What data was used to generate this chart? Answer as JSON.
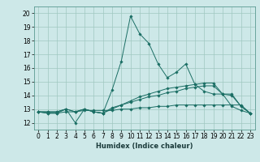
{
  "xlabel": "Humidex (Indice chaleur)",
  "xlim": [
    -0.5,
    23.5
  ],
  "ylim": [
    11.5,
    20.5
  ],
  "xticks": [
    0,
    1,
    2,
    3,
    4,
    5,
    6,
    7,
    8,
    9,
    10,
    11,
    12,
    13,
    14,
    15,
    16,
    17,
    18,
    19,
    20,
    21,
    22,
    23
  ],
  "yticks": [
    12,
    13,
    14,
    15,
    16,
    17,
    18,
    19,
    20
  ],
  "bg_color": "#cde8e8",
  "grid_color": "#a0c8c0",
  "line_color": "#1a6e64",
  "lines": [
    [
      12.8,
      12.8,
      12.8,
      13.0,
      12.0,
      13.0,
      12.8,
      12.7,
      14.4,
      16.5,
      19.8,
      18.5,
      17.8,
      16.3,
      15.3,
      15.7,
      16.3,
      14.8,
      14.3,
      14.1,
      14.1,
      13.2,
      12.9,
      12.7
    ],
    [
      12.8,
      12.8,
      12.8,
      13.0,
      12.8,
      13.0,
      12.8,
      12.7,
      13.0,
      13.3,
      13.6,
      13.9,
      14.1,
      14.3,
      14.5,
      14.6,
      14.7,
      14.8,
      14.9,
      14.9,
      14.1,
      14.1,
      13.2,
      12.7
    ],
    [
      12.8,
      12.7,
      12.7,
      13.0,
      12.8,
      13.0,
      12.8,
      12.7,
      13.1,
      13.3,
      13.5,
      13.7,
      13.9,
      14.0,
      14.2,
      14.3,
      14.5,
      14.6,
      14.7,
      14.7,
      14.1,
      14.0,
      13.2,
      12.7
    ],
    [
      12.8,
      12.7,
      12.7,
      12.8,
      12.8,
      12.9,
      12.9,
      12.9,
      12.9,
      13.0,
      13.0,
      13.1,
      13.1,
      13.2,
      13.2,
      13.3,
      13.3,
      13.3,
      13.3,
      13.3,
      13.3,
      13.3,
      13.3,
      12.7
    ]
  ]
}
